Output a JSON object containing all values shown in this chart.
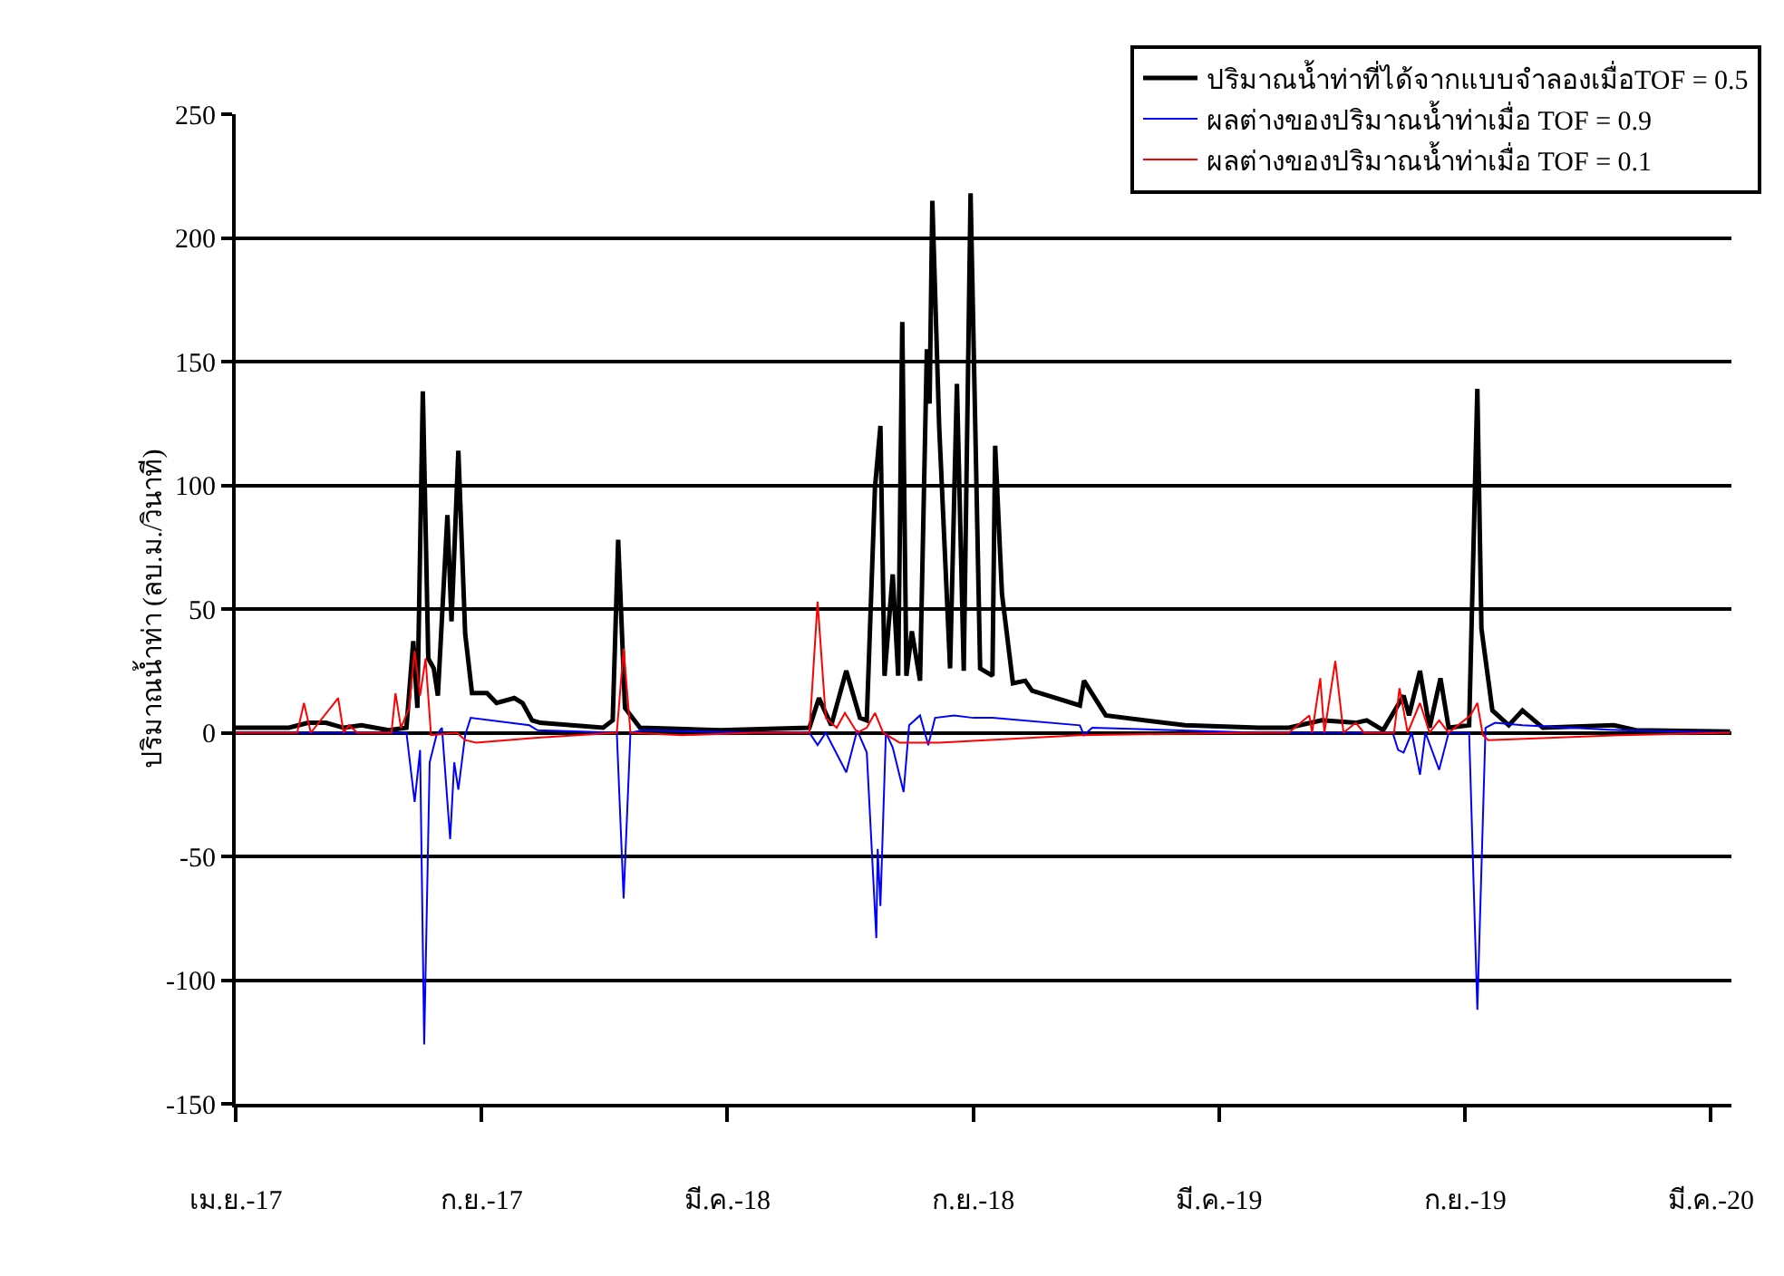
{
  "chart_data": {
    "type": "line",
    "ylabel": "ปริมาณน้ำท่า (ลบ.ม./วินาที)",
    "xlim": [
      "2017-04-01",
      "2020-03-31"
    ],
    "xticks": [
      {
        "value": "2017-04-01",
        "label": "เม.ย.-17"
      },
      {
        "value": "2017-09-28",
        "label": "ก.ย.-17"
      },
      {
        "value": "2018-03-27",
        "label": "มี.ค.-18"
      },
      {
        "value": "2018-09-23",
        "label": "ก.ย.-18"
      },
      {
        "value": "2019-03-22",
        "label": "มี.ค.-19"
      },
      {
        "value": "2019-09-18",
        "label": "ก.ย.-19"
      },
      {
        "value": "2020-03-16",
        "label": "มี.ค.-20"
      }
    ],
    "ylim": [
      -150,
      250
    ],
    "yticks": [
      -150,
      -100,
      -50,
      0,
      50,
      100,
      150,
      200,
      250
    ],
    "grid": "y",
    "legend": "top right",
    "marker": "none",
    "line_style": "solid",
    "series": [
      {
        "name": "ปริมาณน้ำท่าที่ได้จากแบบจำลองเมื่อTOF = 0.5",
        "color": "#000000",
        "x": [
          "2017-04-01",
          "2017-05-10",
          "2017-05-24",
          "2017-06-06",
          "2017-06-19",
          "2017-07-02",
          "2017-07-22",
          "2017-08-04",
          "2017-08-09",
          "2017-08-12",
          "2017-08-16",
          "2017-08-20",
          "2017-08-24",
          "2017-08-27",
          "2017-09-03",
          "2017-09-06",
          "2017-09-11",
          "2017-09-16",
          "2017-09-21",
          "2017-10-02",
          "2017-10-09",
          "2017-10-22",
          "2017-10-28",
          "2017-11-04",
          "2017-11-10",
          "2017-12-26",
          "2018-01-02",
          "2018-01-06",
          "2018-01-11",
          "2018-01-22",
          "2018-03-22",
          "2018-05-26",
          "2018-06-02",
          "2018-06-11",
          "2018-06-22",
          "2018-07-02",
          "2018-07-07",
          "2018-07-13",
          "2018-07-17",
          "2018-07-20",
          "2018-07-26",
          "2018-07-30",
          "2018-08-02",
          "2018-08-05",
          "2018-08-09",
          "2018-08-15",
          "2018-08-20",
          "2018-08-22",
          "2018-08-24",
          "2018-08-29",
          "2018-09-06",
          "2018-09-11",
          "2018-09-16",
          "2018-09-21",
          "2018-09-28",
          "2018-10-07",
          "2018-10-09",
          "2018-10-14",
          "2018-10-22",
          "2018-10-31",
          "2018-11-05",
          "2018-12-10",
          "2018-12-13",
          "2018-12-29",
          "2019-02-25",
          "2019-04-20",
          "2019-05-12",
          "2019-06-05",
          "2019-06-30",
          "2019-07-08",
          "2019-07-20",
          "2019-08-04",
          "2019-08-08",
          "2019-08-16",
          "2019-08-23",
          "2019-08-31",
          "2019-09-06",
          "2019-09-21",
          "2019-09-27",
          "2019-09-30",
          "2019-10-08",
          "2019-10-20",
          "2019-10-30",
          "2019-11-14",
          "2020-01-05",
          "2020-01-21",
          "2020-03-30"
        ],
        "values": [
          2,
          2,
          4,
          4,
          2,
          3,
          1,
          2,
          37,
          10,
          138,
          30,
          26,
          15,
          88,
          45,
          114,
          40,
          16,
          16,
          12,
          14,
          12,
          5,
          4,
          2,
          5,
          78,
          10,
          2,
          1,
          2,
          14,
          3,
          25,
          6,
          5,
          99,
          124,
          23,
          64,
          23,
          166,
          23,
          41,
          21,
          155,
          133,
          215,
          124,
          26,
          141,
          25,
          218,
          26,
          23,
          116,
          56,
          20,
          21,
          17,
          11,
          21,
          7,
          3,
          2,
          2,
          5,
          4,
          5,
          1,
          15,
          7,
          25,
          2,
          22,
          2,
          3,
          139,
          42,
          9,
          3,
          9,
          2,
          3,
          1,
          0.5
        ]
      },
      {
        "name": "ผลต่างของปริมาณน้ำท่าเมื่อ TOF = 0.9",
        "color": "#0000ff",
        "x": [
          "2017-04-01",
          "2017-08-04",
          "2017-08-10",
          "2017-08-14",
          "2017-08-17",
          "2017-08-21",
          "2017-08-26",
          "2017-08-30",
          "2017-09-05",
          "2017-09-08",
          "2017-09-11",
          "2017-09-16",
          "2017-09-20",
          "2017-11-02",
          "2017-11-08",
          "2018-01-05",
          "2018-01-10",
          "2018-01-15",
          "2018-01-24",
          "2018-04-17",
          "2018-05-26",
          "2018-06-01",
          "2018-06-07",
          "2018-06-22",
          "2018-06-30",
          "2018-07-07",
          "2018-07-14",
          "2018-07-15",
          "2018-07-17",
          "2018-07-21",
          "2018-07-26",
          "2018-08-03",
          "2018-08-07",
          "2018-08-15",
          "2018-08-21",
          "2018-08-26",
          "2018-09-09",
          "2018-09-23",
          "2018-10-07",
          "2018-12-10",
          "2018-12-13",
          "2018-12-19",
          "2019-04-20",
          "2019-07-27",
          "2019-07-31",
          "2019-08-04",
          "2019-08-10",
          "2019-08-16",
          "2019-08-20",
          "2019-08-30",
          "2019-09-06",
          "2019-09-21",
          "2019-09-27",
          "2019-10-03",
          "2019-10-10",
          "2019-10-30",
          "2020-01-10",
          "2020-03-30"
        ],
        "values": [
          0,
          0,
          -28,
          -7,
          -126,
          -12,
          -1,
          2,
          -43,
          -12,
          -23,
          -1,
          6,
          3,
          1,
          0,
          -67,
          0,
          1,
          0,
          0,
          -5,
          0,
          -16,
          1,
          -8,
          -83,
          -47,
          -70,
          0,
          -6,
          -24,
          3,
          7,
          -5,
          6,
          7,
          6,
          6,
          3,
          -1,
          2,
          0,
          0,
          -7,
          -8,
          0,
          -17,
          0,
          -15,
          0,
          0,
          -112,
          2,
          4,
          3,
          1,
          0
        ]
      },
      {
        "name": "ผลต่างของปริมาณน้ำท่าเมื่อ TOF = 0.1",
        "color": "#ff0000",
        "x": [
          "2017-04-01",
          "2017-05-16",
          "2017-05-21",
          "2017-05-26",
          "2017-06-15",
          "2017-06-19",
          "2017-06-23",
          "2017-06-29",
          "2017-07-24",
          "2017-07-27",
          "2017-07-31",
          "2017-08-06",
          "2017-08-10",
          "2017-08-14",
          "2017-08-18",
          "2017-08-22",
          "2017-09-10",
          "2017-09-16",
          "2017-09-24",
          "2017-11-08",
          "2018-01-05",
          "2018-01-10",
          "2018-01-15",
          "2018-02-22",
          "2018-04-17",
          "2018-05-26",
          "2018-06-01",
          "2018-06-07",
          "2018-06-15",
          "2018-06-21",
          "2018-06-30",
          "2018-07-07",
          "2018-07-13",
          "2018-07-19",
          "2018-07-31",
          "2018-08-29",
          "2018-12-10",
          "2019-04-20",
          "2019-05-12",
          "2019-05-27",
          "2019-05-29",
          "2019-06-04",
          "2019-06-07",
          "2019-06-15",
          "2019-06-21",
          "2019-06-30",
          "2019-07-06",
          "2019-07-28",
          "2019-08-01",
          "2019-08-07",
          "2019-08-16",
          "2019-08-23",
          "2019-08-30",
          "2019-09-06",
          "2019-09-22",
          "2019-09-27",
          "2019-10-01",
          "2019-10-05",
          "2020-01-10",
          "2020-03-30"
        ],
        "values": [
          0,
          0,
          12,
          0,
          14,
          0,
          3,
          0,
          0,
          16,
          2,
          10,
          33,
          15,
          30,
          -1,
          0,
          -3,
          -4,
          -2,
          0,
          34,
          0,
          -1,
          0,
          0,
          53,
          6,
          2,
          8,
          0,
          2,
          8,
          0,
          -4,
          -4,
          -1,
          0,
          0,
          7,
          0,
          22,
          0,
          29,
          0,
          4,
          0,
          0,
          18,
          0,
          12,
          0,
          5,
          0,
          7,
          12,
          -1,
          -3,
          -1,
          0
        ]
      }
    ]
  }
}
